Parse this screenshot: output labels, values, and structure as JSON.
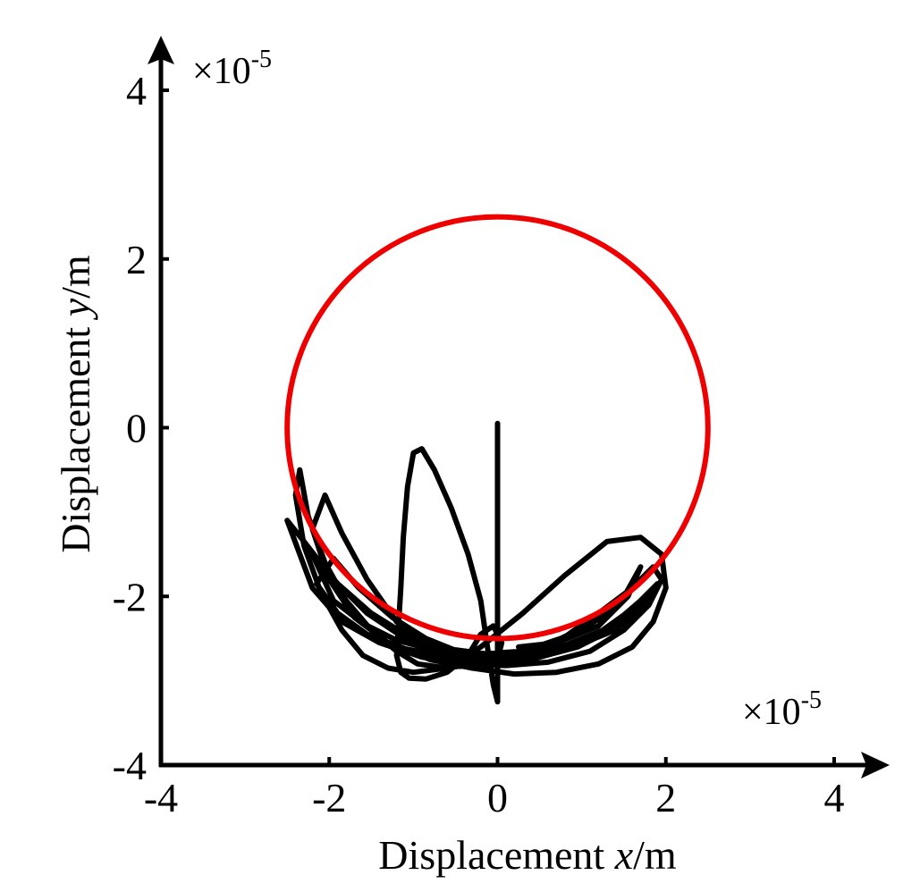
{
  "chart_data": {
    "type": "line",
    "title": "",
    "xlabel": {
      "prefix": "Displacement ",
      "var": "x",
      "suffix": "/m"
    },
    "ylabel": {
      "prefix": "Displacement ",
      "var": "y",
      "suffix": "/m"
    },
    "xlim": [
      -4,
      4
    ],
    "ylim": [
      -4,
      4
    ],
    "xticks": [
      -4,
      -2,
      0,
      2,
      4
    ],
    "yticks": [
      -4,
      -2,
      0,
      2,
      4
    ],
    "x_multiplier": {
      "base": "×10",
      "exp": "-5"
    },
    "y_multiplier": {
      "base": "×10",
      "exp": "-5"
    },
    "grid": false,
    "colors": {
      "orbit": "#000000",
      "clearance_circle": "#ee0000"
    },
    "series": [
      {
        "style": "circle",
        "center": [
          0,
          0
        ],
        "radius": 2.5
      },
      {
        "style": "trajectory",
        "x": [
          0.0,
          0.0,
          -0.05,
          -0.12,
          -0.2,
          -0.35,
          -0.55,
          -0.75,
          -0.9,
          -1.0,
          -1.07,
          -1.12,
          -1.15,
          -1.18,
          -1.2,
          -1.15,
          -1.05,
          -0.85,
          -0.6,
          -0.35,
          -0.2,
          -0.05,
          0.05,
          0.0,
          -0.3,
          -0.6,
          -0.95,
          -1.2,
          -1.5,
          -1.8,
          -2.05,
          -2.25,
          -2.35,
          -2.4,
          -2.3,
          -2.1,
          -1.85,
          -1.6,
          -1.3,
          -1.0,
          -0.6,
          -0.2,
          0.3,
          0.8,
          1.3,
          1.7,
          1.95,
          2.0,
          1.85,
          1.6,
          1.2,
          0.7,
          0.2,
          -0.3,
          -0.8,
          -1.3,
          -1.7,
          -2.0,
          -2.2,
          -2.05,
          -1.85,
          -1.55,
          -1.2,
          -0.8,
          -0.3,
          0.2,
          0.7,
          1.2,
          1.6,
          1.85,
          1.95,
          1.8,
          1.5,
          1.1,
          0.6,
          0.1,
          -0.4,
          -0.9,
          -1.4,
          -1.85,
          -2.2,
          -2.5,
          -2.3,
          -1.95,
          -1.55,
          -1.1,
          -0.6,
          -0.1,
          0.4,
          0.9,
          1.35,
          1.7,
          1.9,
          1.75,
          1.4,
          0.9,
          0.4,
          -0.1,
          -0.6,
          -1.1,
          -1.55,
          -1.9,
          -2.15,
          -1.95,
          -1.65,
          -1.25,
          -0.85,
          -0.4,
          0.05,
          0.5,
          0.95,
          1.35,
          1.65,
          1.8,
          1.6,
          1.25,
          0.8,
          0.3,
          -0.2,
          -0.7,
          -1.2,
          -1.6,
          -1.95,
          -2.2,
          -1.9,
          -1.5,
          -1.05,
          -0.6,
          -0.15,
          0.3,
          0.75,
          1.15,
          1.45,
          1.7,
          1.55,
          1.2,
          0.7,
          0.25
        ],
        "y": [
          0.05,
          -3.25,
          -3.05,
          -2.6,
          -2.05,
          -1.5,
          -0.95,
          -0.5,
          -0.25,
          -0.3,
          -0.7,
          -1.3,
          -1.9,
          -2.4,
          -2.7,
          -2.9,
          -2.97,
          -2.98,
          -2.9,
          -2.7,
          -2.45,
          -2.35,
          -2.55,
          -2.75,
          -2.8,
          -2.85,
          -2.8,
          -2.65,
          -2.4,
          -2.05,
          -1.6,
          -1.05,
          -0.5,
          -0.8,
          -1.4,
          -1.95,
          -2.4,
          -2.7,
          -2.85,
          -2.9,
          -2.85,
          -2.6,
          -2.2,
          -1.75,
          -1.35,
          -1.3,
          -1.5,
          -1.9,
          -2.3,
          -2.6,
          -2.8,
          -2.9,
          -2.92,
          -2.85,
          -2.75,
          -2.55,
          -2.25,
          -1.8,
          -1.2,
          -0.8,
          -1.25,
          -1.8,
          -2.3,
          -2.65,
          -2.8,
          -2.75,
          -2.55,
          -2.2,
          -1.9,
          -1.65,
          -1.8,
          -2.1,
          -2.4,
          -2.65,
          -2.78,
          -2.82,
          -2.8,
          -2.72,
          -2.55,
          -2.3,
          -1.9,
          -1.1,
          -1.35,
          -1.8,
          -2.2,
          -2.5,
          -2.7,
          -2.78,
          -2.75,
          -2.6,
          -2.35,
          -2.05,
          -1.85,
          -2.1,
          -2.4,
          -2.6,
          -2.72,
          -2.75,
          -2.72,
          -2.62,
          -2.45,
          -2.2,
          -1.85,
          -1.55,
          -1.9,
          -2.25,
          -2.5,
          -2.68,
          -2.75,
          -2.72,
          -2.6,
          -2.4,
          -2.15,
          -1.95,
          -2.15,
          -2.4,
          -2.58,
          -2.68,
          -2.7,
          -2.65,
          -2.52,
          -2.32,
          -2.05,
          -1.5,
          -1.85,
          -2.2,
          -2.48,
          -2.62,
          -2.68,
          -2.65,
          -2.5,
          -2.3,
          -2.1,
          -1.65,
          -2.0,
          -2.35,
          -2.55,
          -2.6
        ]
      }
    ]
  }
}
